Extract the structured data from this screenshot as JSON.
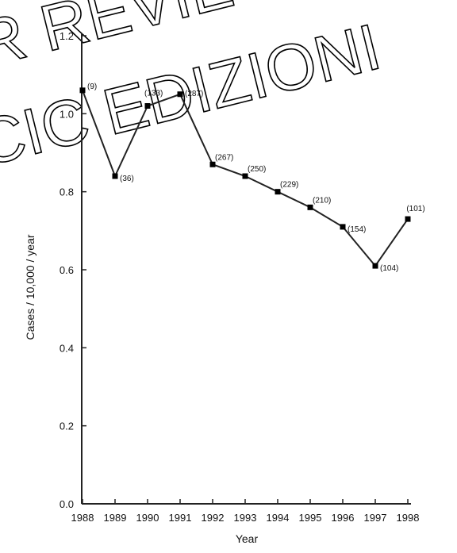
{
  "chart_data": {
    "type": "line",
    "xlabel": "Year",
    "ylabel": "Cases / 10,000 / year",
    "ylim": [
      0,
      1.2
    ],
    "yticks": [
      "0.0",
      "0.2",
      "0.4",
      "0.6",
      "0.8",
      "1.0",
      "1.2"
    ],
    "x": [
      "1988",
      "1989",
      "1990",
      "1991",
      "1992",
      "1993",
      "1994",
      "1995",
      "1996",
      "1997",
      "1998"
    ],
    "values": [
      1.06,
      0.84,
      1.02,
      1.05,
      0.87,
      0.84,
      0.8,
      0.76,
      0.71,
      0.61,
      0.73
    ],
    "labels": [
      "(9)",
      "(36)",
      "(133)",
      "(287)",
      "(267)",
      "(250)",
      "(229)",
      "(210)",
      "(154)",
      "(104)",
      "(101)"
    ],
    "grid": false,
    "legend": "none"
  },
  "watermark": {
    "line1": "R REVIE",
    "line2": "CIC EDIZIONI"
  }
}
